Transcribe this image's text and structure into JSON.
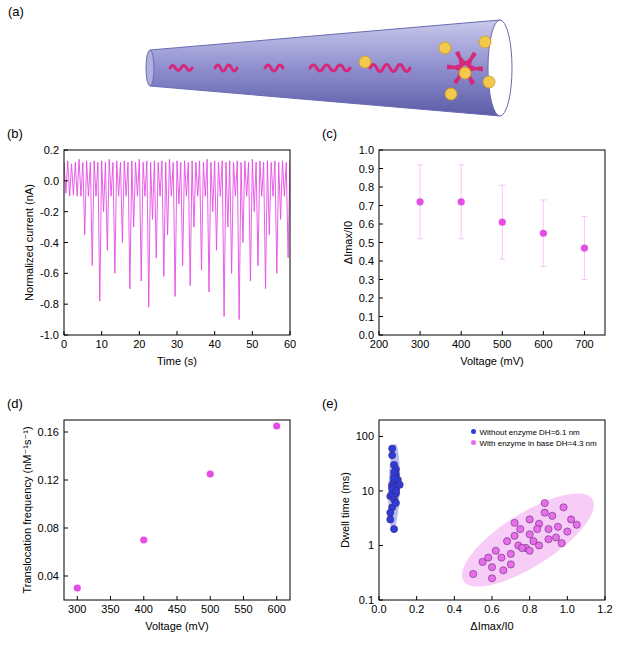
{
  "chart_data": [
    {
      "type": "diagram",
      "title": "(a)"
    },
    {
      "type": "line",
      "title": "(b)",
      "xlabel": "Time (s)",
      "ylabel": "Normalized current (nA)",
      "color": "#e64ce6",
      "line_style": "solid",
      "xlim": [
        0,
        60
      ],
      "xticks": [
        0,
        10,
        20,
        30,
        40,
        50,
        60
      ],
      "ylim": [
        -1,
        0.2
      ],
      "yticks": [
        {
          "value": -1,
          "label": "-1.0"
        },
        -0.8,
        -0.6,
        -0.4,
        -0.2,
        {
          "value": 0,
          "label": "0.0"
        },
        0.2
      ],
      "x": [
        0,
        0.5,
        1,
        1.5,
        2,
        2.5,
        3,
        3.5,
        4,
        4.5,
        5,
        5.5,
        6,
        6.5,
        7,
        7.5,
        8,
        8.5,
        9,
        9.5,
        10,
        10.5,
        11,
        11.5,
        12,
        12.5,
        13,
        13.5,
        14,
        14.5,
        15,
        15.5,
        16,
        16.5,
        17,
        17.5,
        18,
        18.5,
        19,
        19.5,
        20,
        20.5,
        21,
        21.5,
        22,
        22.5,
        23,
        23.5,
        24,
        24.5,
        25,
        25.5,
        26,
        26.5,
        27,
        27.5,
        28,
        28.5,
        29,
        29.5,
        30,
        30.5,
        31,
        31.5,
        32,
        32.5,
        33,
        33.5,
        34,
        34.5,
        35,
        35.5,
        36,
        36.5,
        37,
        37.5,
        38,
        38.5,
        39,
        39.5,
        40,
        40.5,
        41,
        41.5,
        42,
        42.5,
        43,
        43.5,
        44,
        44.5,
        45,
        45.5,
        46,
        46.5,
        47,
        47.5,
        48,
        48.5,
        49,
        49.5,
        50,
        50.5,
        51,
        51.5,
        52,
        52.5,
        53,
        53.5,
        54,
        54.5,
        55,
        55.5,
        56,
        56.5,
        57,
        57.5,
        58,
        58.5,
        59,
        59.5,
        60
      ],
      "values": [
        0.12,
        -0.08,
        0.13,
        -0.1,
        0.11,
        -0.09,
        0.12,
        -0.1,
        0.14,
        -0.1,
        0.12,
        -0.35,
        0.13,
        -0.1,
        0.12,
        -0.55,
        0.13,
        -0.1,
        0.12,
        -0.78,
        0.13,
        -0.2,
        0.12,
        -0.45,
        0.14,
        -0.1,
        0.12,
        -0.6,
        0.13,
        -0.1,
        0.12,
        -0.4,
        0.13,
        -0.1,
        0.12,
        -0.7,
        0.13,
        -0.3,
        0.12,
        -0.1,
        0.14,
        -0.65,
        0.12,
        -0.1,
        0.13,
        -0.82,
        0.12,
        -0.25,
        0.13,
        -0.5,
        0.12,
        -0.1,
        0.13,
        -0.62,
        0.12,
        -0.35,
        0.14,
        -0.1,
        0.12,
        -0.75,
        0.13,
        -0.15,
        0.12,
        -0.55,
        0.13,
        -0.1,
        0.12,
        -0.68,
        0.13,
        -0.3,
        0.12,
        -0.1,
        0.13,
        -0.58,
        0.12,
        -0.1,
        0.14,
        -0.72,
        0.12,
        -0.2,
        0.13,
        -0.45,
        0.12,
        -0.1,
        0.13,
        -0.88,
        0.12,
        -0.3,
        0.13,
        -0.6,
        0.12,
        -0.1,
        0.13,
        -0.9,
        0.12,
        -0.4,
        0.13,
        -0.1,
        0.12,
        -0.65,
        0.14,
        -0.2,
        0.12,
        -0.55,
        0.13,
        -0.1,
        0.12,
        -0.7,
        0.13,
        -0.35,
        0.12,
        -0.1,
        0.13,
        -0.6,
        0.12,
        -0.25,
        0.13,
        -0.1,
        0.12,
        -0.5,
        0.13
      ]
    },
    {
      "type": "scatter",
      "title": "(c)",
      "xlabel": "Voltage (mV)",
      "ylabel": "ΔImax/I0",
      "color": "#e64ce6",
      "marker": "circle",
      "xlim": [
        200,
        750
      ],
      "xticks": [
        200,
        300,
        400,
        500,
        600,
        700
      ],
      "ylim": [
        0,
        1
      ],
      "yticks": [
        {
          "value": 0,
          "label": "0.0"
        },
        0.1,
        0.2,
        0.3,
        0.4,
        0.5,
        0.6,
        0.7,
        0.8,
        0.9,
        {
          "value": 1,
          "label": "1.0"
        }
      ],
      "x": [
        300,
        400,
        500,
        600,
        700
      ],
      "values": [
        0.72,
        0.72,
        0.61,
        0.55,
        0.47
      ],
      "errors": [
        0.2,
        0.2,
        0.2,
        0.18,
        0.17
      ]
    },
    {
      "type": "scatter",
      "title": "(d)",
      "xlabel": "Voltage (mV)",
      "ylabel": "Translocation frequency (nM⁻¹s⁻¹)",
      "color": "#e64ce6",
      "marker": "circle",
      "xlim": [
        280,
        620
      ],
      "xticks": [
        300,
        350,
        400,
        450,
        500,
        550,
        600
      ],
      "ylim": [
        0.02,
        0.17
      ],
      "yticks": [
        0.04,
        0.08,
        0.12,
        0.16
      ],
      "x": [
        300,
        400,
        500,
        600
      ],
      "values": [
        0.03,
        0.07,
        0.125,
        0.165
      ]
    },
    {
      "type": "scatter",
      "title": "(e)",
      "xlabel": "ΔImax/I0",
      "ylabel": "Dwell time (ms)",
      "log": "y",
      "legend": "upper right",
      "marker": "circle",
      "xlim": [
        0,
        1.2
      ],
      "xticks": [
        {
          "value": 0,
          "label": "0.0"
        },
        0.2,
        0.4,
        0.6,
        0.8,
        {
          "value": 1,
          "label": "1.0"
        },
        1.2
      ],
      "ylim": [
        0.1,
        200
      ],
      "yticks": [
        0.1,
        1,
        10,
        100
      ],
      "series": [
        {
          "name": "Without enzyme DH=6.1 nm",
          "color": "#2b3fd6",
          "x": [
            0.07,
            0.08,
            0.06,
            0.09,
            0.08,
            0.07,
            0.1,
            0.08,
            0.07,
            0.09,
            0.06,
            0.08,
            0.09,
            0.07,
            0.08,
            0.1,
            0.07,
            0.08,
            0.09,
            0.06,
            0.08,
            0.07,
            0.09,
            0.08,
            0.11,
            0.07,
            0.08,
            0.09
          ],
          "values": [
            12,
            15,
            8,
            20,
            10,
            5,
            14,
            30,
            9,
            11,
            3,
            18,
            25,
            13,
            7,
            16,
            45,
            12,
            9,
            4,
            22,
            11,
            6,
            17,
            13,
            60,
            2,
            10
          ]
        },
        {
          "name": "With enzyme in base DH=4.3 nm",
          "color": "#e86ee8",
          "x": [
            0.5,
            0.55,
            0.6,
            0.62,
            0.65,
            0.68,
            0.7,
            0.72,
            0.74,
            0.75,
            0.78,
            0.8,
            0.8,
            0.82,
            0.85,
            0.85,
            0.88,
            0.9,
            0.9,
            0.92,
            0.95,
            0.98,
            1.0,
            1.02,
            0.6,
            0.7,
            0.76,
            0.84,
            0.58,
            0.66,
            0.88,
            0.94,
            0.72,
            0.8,
            0.97,
            1.05
          ],
          "values": [
            0.3,
            0.5,
            0.4,
            0.8,
            0.6,
            1.2,
            0.7,
            1.5,
            1.0,
            2,
            0.9,
            1.6,
            3,
            1.2,
            2.5,
            1.0,
            4,
            2,
            1.3,
            3.5,
            2.2,
            5,
            1.8,
            3,
            0.25,
            0.45,
            0.9,
            2,
            0.6,
            0.35,
            6,
            1.4,
            2.6,
            0.8,
            1.1,
            2.4
          ]
        }
      ]
    }
  ]
}
